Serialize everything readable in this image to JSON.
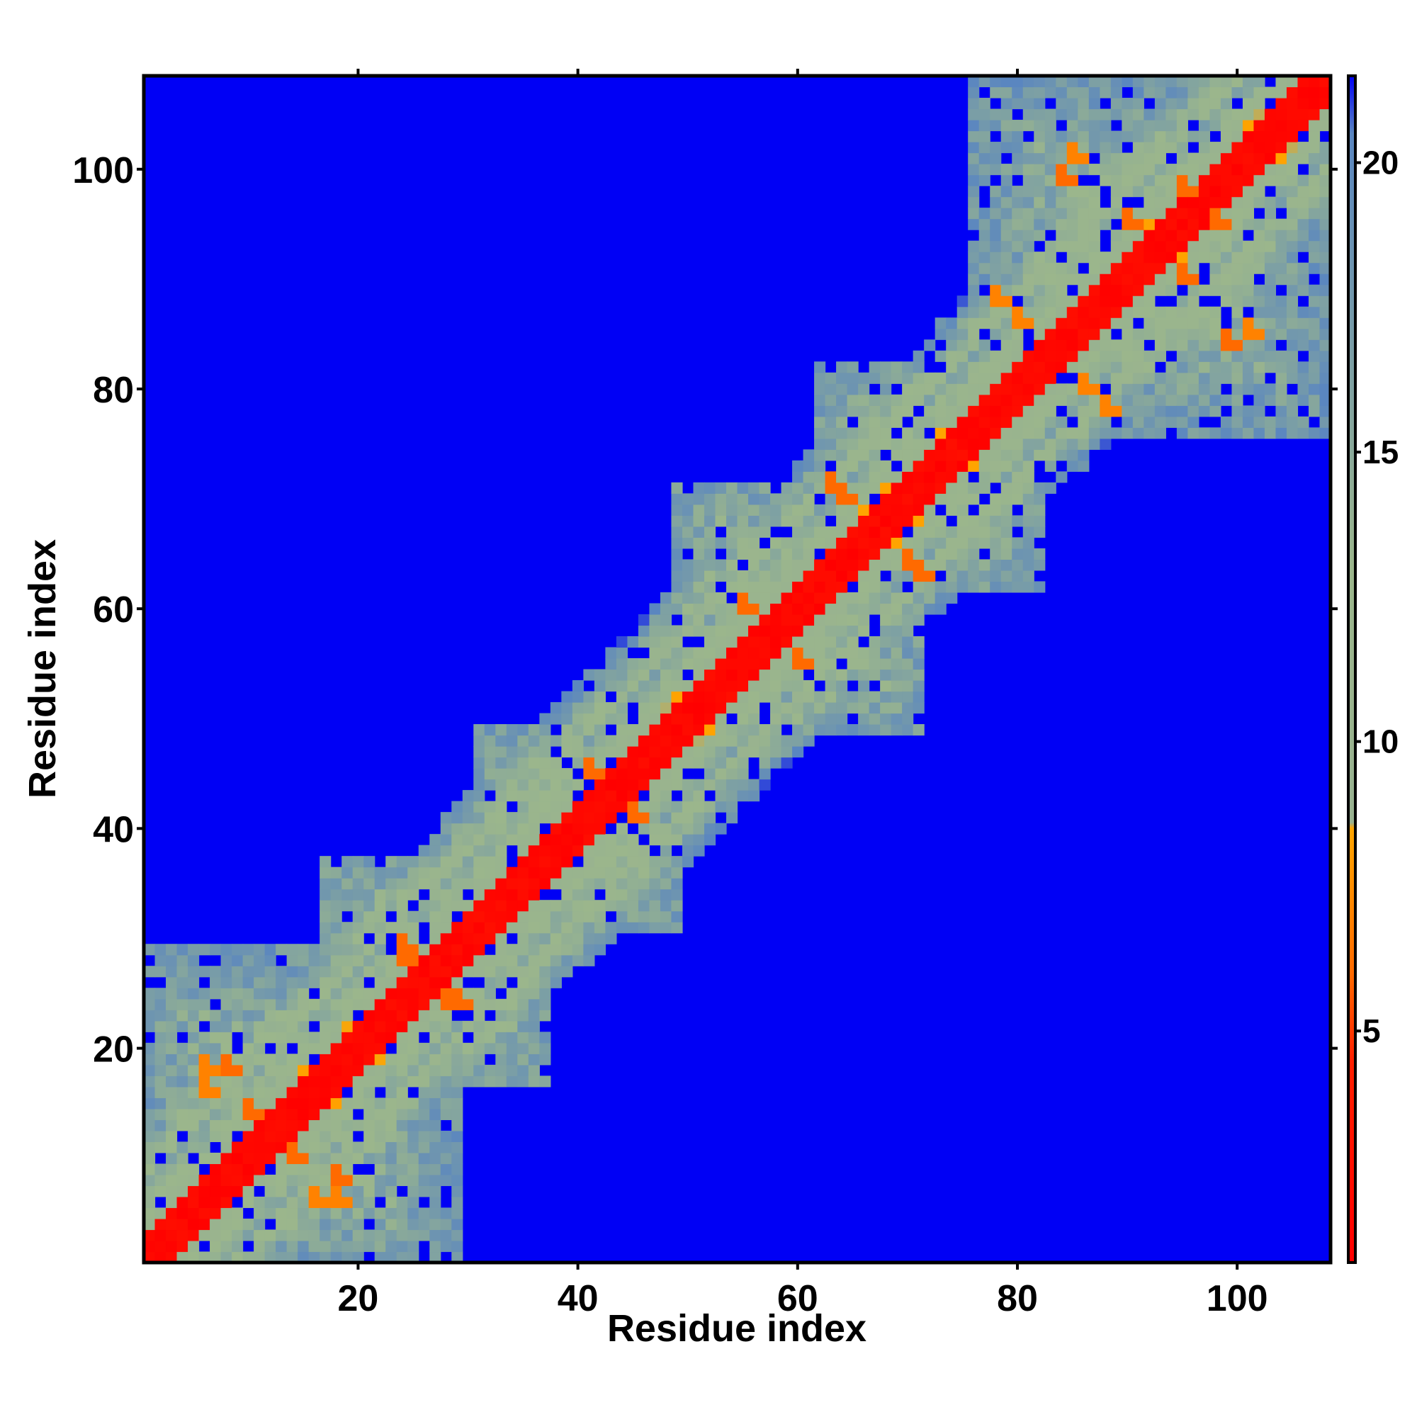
{
  "chart_data": {
    "type": "heatmap",
    "title": "",
    "xlabel": "Residue index",
    "ylabel": "Residue index",
    "n_residues": 108,
    "xlim": [
      1,
      108
    ],
    "ylim": [
      1,
      108
    ],
    "x_ticks": [
      "20",
      "40",
      "60",
      "80",
      "100"
    ],
    "y_ticks": [
      "20",
      "40",
      "60",
      "80",
      "100"
    ],
    "colorbar": {
      "ticks": [
        "5",
        "10",
        "15",
        "20"
      ],
      "range": [
        1,
        21.5
      ],
      "stops": [
        {
          "value": 1.0,
          "color": "#ff0000"
        },
        {
          "value": 4.5,
          "color": "#ff2000"
        },
        {
          "value": 6.0,
          "color": "#ff6a00"
        },
        {
          "value": 8.5,
          "color": "#ffa500"
        },
        {
          "value": 8.6,
          "color": "#98b290"
        },
        {
          "value": 13.0,
          "color": "#9bb68c"
        },
        {
          "value": 20.5,
          "color": "#5a86c0"
        },
        {
          "value": 21.5,
          "color": "#0000f5"
        }
      ]
    },
    "background_value": 21.5,
    "diagonal_band": {
      "halfwidth": 2,
      "value": 1.0
    },
    "cutoff": 21,
    "domains": [
      {
        "center_i": 14,
        "center_j": 14,
        "radius": 15,
        "mean_value": 15
      },
      {
        "center_i": 27,
        "center_j": 27,
        "radius": 10,
        "mean_value": 14
      },
      {
        "center_i": 40,
        "center_j": 40,
        "radius": 9,
        "mean_value": 14
      },
      {
        "center_i": 60,
        "center_j": 60,
        "radius": 11,
        "mean_value": 14
      },
      {
        "center_i": 72,
        "center_j": 72,
        "radius": 10,
        "mean_value": 14
      },
      {
        "center_i": 92,
        "center_j": 92,
        "radius": 16,
        "mean_value": 15
      }
    ],
    "hotspots": [
      {
        "i": 6,
        "j": 18,
        "value": 7
      },
      {
        "i": 10,
        "j": 14,
        "value": 6
      },
      {
        "i": 16,
        "j": 6,
        "value": 7
      },
      {
        "i": 18,
        "j": 8,
        "value": 6
      },
      {
        "i": 24,
        "j": 29,
        "value": 6
      },
      {
        "i": 28,
        "j": 24,
        "value": 6
      },
      {
        "i": 41,
        "j": 45,
        "value": 6
      },
      {
        "i": 55,
        "j": 60,
        "value": 6
      },
      {
        "i": 63,
        "j": 71,
        "value": 6
      },
      {
        "i": 70,
        "j": 64,
        "value": 6
      },
      {
        "i": 78,
        "j": 88,
        "value": 7
      },
      {
        "i": 86,
        "j": 80,
        "value": 7
      },
      {
        "i": 84,
        "j": 99,
        "value": 6
      },
      {
        "i": 95,
        "j": 90,
        "value": 6
      },
      {
        "i": 98,
        "j": 95,
        "value": 6
      },
      {
        "i": 101,
        "j": 85,
        "value": 7
      }
    ]
  }
}
